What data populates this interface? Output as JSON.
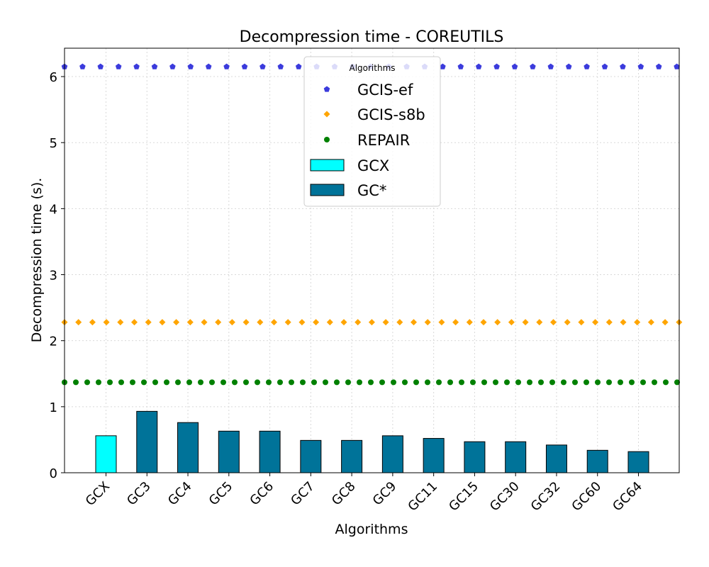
{
  "chart_data": {
    "type": "bar",
    "title": "Decompression time -  COREUTILS",
    "xlabel": "Algorithms",
    "ylabel": "Decompression time (s).",
    "ylim": [
      0,
      6.43
    ],
    "yticks": [
      0,
      1,
      2,
      3,
      4,
      5,
      6
    ],
    "grid": true,
    "categories": [
      "GCX",
      "GC3",
      "GC4",
      "GC5",
      "GC6",
      "GC7",
      "GC8",
      "GC9",
      "GC11",
      "GC15",
      "GC30",
      "GC32",
      "GC60",
      "GC64"
    ],
    "values": [
      0.56,
      0.93,
      0.76,
      0.63,
      0.63,
      0.49,
      0.49,
      0.56,
      0.52,
      0.47,
      0.47,
      0.42,
      0.34,
      0.32
    ],
    "bar_series": [
      {
        "name": "GCX",
        "color": "#00ffff",
        "categories": [
          "GCX"
        ]
      },
      {
        "name": "GC*",
        "color": "#007399",
        "categories": [
          "GC3",
          "GC4",
          "GC5",
          "GC6",
          "GC7",
          "GC8",
          "GC9",
          "GC11",
          "GC15",
          "GC30",
          "GC32",
          "GC60",
          "GC64"
        ]
      }
    ],
    "reference_lines": [
      {
        "name": "GCIS-ef",
        "value": 6.15,
        "color": "#3b3bdc",
        "marker": "pentagon"
      },
      {
        "name": "GCIS-s8b",
        "value": 2.28,
        "color": "#ffa500",
        "marker": "diamond"
      },
      {
        "name": "REPAIR",
        "value": 1.37,
        "color": "#008000",
        "marker": "circle"
      }
    ],
    "legend": {
      "title": "Algorithms",
      "placement": "top-center",
      "entries": [
        "GCIS-ef",
        "GCIS-s8b",
        "REPAIR",
        "GCX",
        "GC*"
      ]
    }
  }
}
